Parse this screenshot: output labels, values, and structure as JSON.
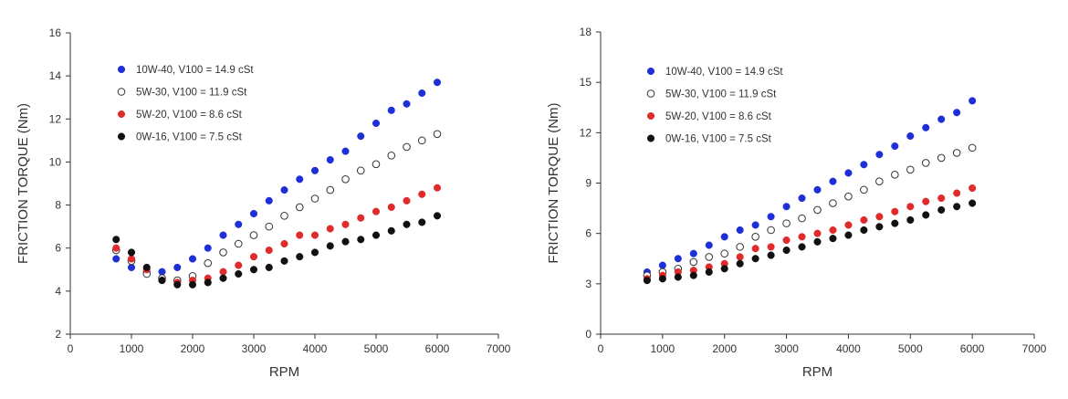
{
  "chart_data": [
    {
      "type": "scatter",
      "title": "",
      "xlabel": "RPM",
      "ylabel": "FRICTION TORQUE (Nm)",
      "xlim": [
        0,
        7000
      ],
      "ylim": [
        2,
        16
      ],
      "xticks": [
        0,
        1000,
        2000,
        3000,
        4000,
        5000,
        6000,
        7000
      ],
      "yticks": [
        2,
        4,
        6,
        8,
        10,
        12,
        14,
        16
      ],
      "grid": false,
      "legend_position": "top-left",
      "x": [
        750,
        1000,
        1250,
        1500,
        1750,
        2000,
        2250,
        2500,
        2750,
        3000,
        3250,
        3500,
        3750,
        4000,
        4250,
        4500,
        4750,
        5000,
        5250,
        5500,
        5750,
        6000
      ],
      "series": [
        {
          "name": "10W-40, V100 = 14.9 cSt",
          "color": "#1f2fd8",
          "marker": "filled-circle",
          "values": [
            5.5,
            5.1,
            4.9,
            4.9,
            5.1,
            5.5,
            6.0,
            6.6,
            7.1,
            7.6,
            8.2,
            8.7,
            9.2,
            9.6,
            10.1,
            10.5,
            11.2,
            11.8,
            12.4,
            12.7,
            13.2,
            13.7
          ]
        },
        {
          "name": "5W-30, V100 = 11.9 cSt",
          "color": "#333333",
          "marker": "open-circle",
          "values": [
            5.9,
            5.4,
            4.8,
            4.6,
            4.5,
            4.7,
            5.3,
            5.8,
            6.2,
            6.6,
            7.0,
            7.5,
            7.9,
            8.3,
            8.7,
            9.2,
            9.6,
            9.9,
            10.3,
            10.7,
            11.0,
            11.3
          ]
        },
        {
          "name": "5W-20, V100 = 8.6 cSt",
          "color": "#e02b2b",
          "marker": "filled-circle",
          "values": [
            6.0,
            5.5,
            5.0,
            4.5,
            4.4,
            4.5,
            4.6,
            4.9,
            5.2,
            5.6,
            5.9,
            6.2,
            6.6,
            6.6,
            6.9,
            7.1,
            7.4,
            7.7,
            7.9,
            8.2,
            8.5,
            8.8
          ]
        },
        {
          "name": "0W-16, V100 = 7.5 cSt",
          "color": "#111111",
          "marker": "filled-circle",
          "values": [
            6.4,
            5.8,
            5.1,
            4.5,
            4.3,
            4.3,
            4.4,
            4.6,
            4.8,
            5.0,
            5.1,
            5.4,
            5.6,
            5.8,
            6.1,
            6.3,
            6.4,
            6.6,
            6.8,
            7.1,
            7.2,
            7.5
          ]
        }
      ]
    },
    {
      "type": "scatter",
      "title": "",
      "xlabel": "RPM",
      "ylabel": "FRICTION TORQUE (Nm)",
      "xlim": [
        0,
        7000
      ],
      "ylim": [
        0,
        18
      ],
      "xticks": [
        0,
        1000,
        2000,
        3000,
        4000,
        5000,
        6000,
        7000
      ],
      "yticks": [
        0,
        3,
        6,
        9,
        12,
        15,
        18
      ],
      "grid": false,
      "legend_position": "top-left",
      "x": [
        750,
        1000,
        1250,
        1500,
        1750,
        2000,
        2250,
        2500,
        2750,
        3000,
        3250,
        3500,
        3750,
        4000,
        4250,
        4500,
        4750,
        5000,
        5250,
        5500,
        5750,
        6000
      ],
      "series": [
        {
          "name": "10W-40, V100 = 14.9 cSt",
          "color": "#1f2fd8",
          "marker": "filled-circle",
          "values": [
            3.7,
            4.1,
            4.5,
            4.8,
            5.3,
            5.8,
            6.2,
            6.5,
            7.0,
            7.6,
            8.1,
            8.6,
            9.1,
            9.6,
            10.1,
            10.7,
            11.2,
            11.8,
            12.3,
            12.8,
            13.2,
            13.9
          ]
        },
        {
          "name": "5W-30, V100 = 11.9 cSt",
          "color": "#333333",
          "marker": "open-circle",
          "values": [
            3.5,
            3.7,
            3.9,
            4.3,
            4.6,
            4.8,
            5.2,
            5.8,
            6.2,
            6.6,
            6.9,
            7.4,
            7.8,
            8.2,
            8.6,
            9.1,
            9.5,
            9.8,
            10.2,
            10.5,
            10.8,
            11.1
          ]
        },
        {
          "name": "5W-20, V100 = 8.6 cSt",
          "color": "#e02b2b",
          "marker": "filled-circle",
          "values": [
            3.3,
            3.5,
            3.7,
            3.8,
            4.0,
            4.2,
            4.6,
            5.1,
            5.2,
            5.6,
            5.8,
            6.0,
            6.2,
            6.5,
            6.8,
            7.0,
            7.3,
            7.6,
            7.9,
            8.1,
            8.4,
            8.7
          ]
        },
        {
          "name": "0W-16, V100 = 7.5 cSt",
          "color": "#111111",
          "marker": "filled-circle",
          "values": [
            3.2,
            3.3,
            3.4,
            3.5,
            3.7,
            3.9,
            4.2,
            4.5,
            4.7,
            5.0,
            5.2,
            5.5,
            5.7,
            5.9,
            6.2,
            6.4,
            6.6,
            6.8,
            7.1,
            7.4,
            7.6,
            7.8
          ]
        }
      ]
    }
  ]
}
